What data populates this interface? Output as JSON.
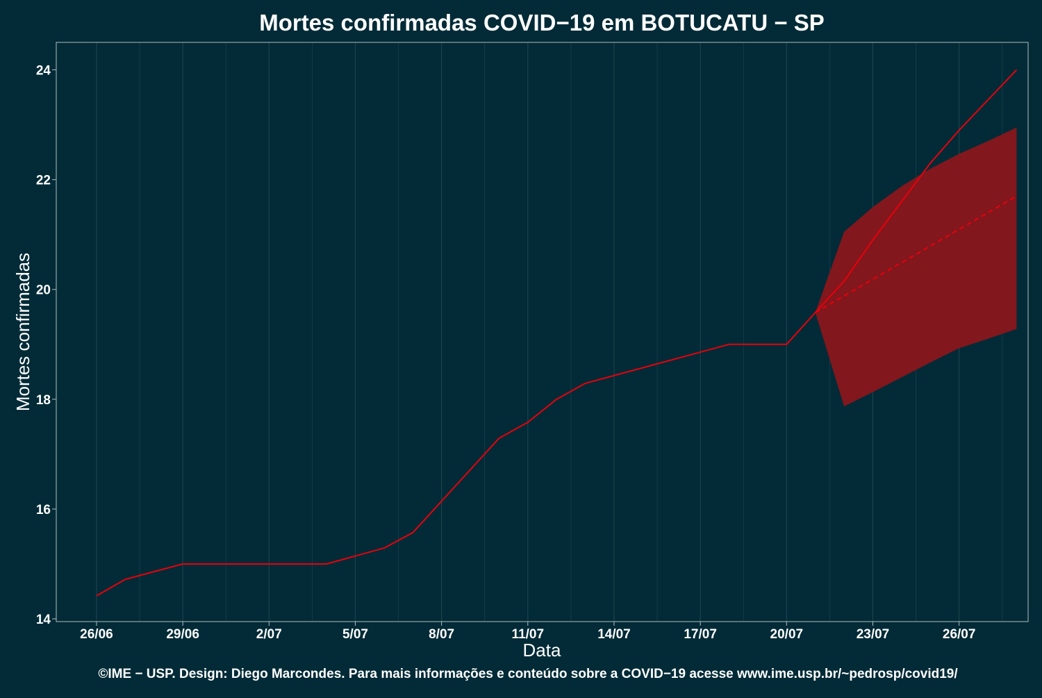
{
  "colors": {
    "background": "#022b37",
    "line": "#e8000b",
    "band": "#82171d",
    "grid": "#1c434e",
    "axis": "#b3bec2"
  },
  "chart_data": {
    "type": "line",
    "title": "Mortes confirmadas COVID−19 em BOTUCATU − SP",
    "xlabel": "Data",
    "ylabel": "Mortes confirmadas",
    "caption": "©IME − USP. Design: Diego Marcondes. Para mais informações e conteúdo sobre a COVID−19 acesse www.ime.usp.br/~pedrosp/covid19/",
    "x_axis": {
      "ticks": [
        "26/06",
        "29/06",
        "2/07",
        "5/07",
        "8/07",
        "11/07",
        "14/07",
        "17/07",
        "20/07",
        "23/07",
        "26/07"
      ],
      "tick_days": [
        0,
        3,
        6,
        9,
        12,
        15,
        18,
        21,
        24,
        27,
        30
      ],
      "range_days": [
        -1.4,
        32.4
      ]
    },
    "y_axis": {
      "ticks": [
        "14",
        "16",
        "18",
        "20",
        "22",
        "24"
      ],
      "tick_values": [
        14,
        16,
        18,
        20,
        22,
        24
      ],
      "range": [
        13.95,
        24.5
      ]
    },
    "grid": true,
    "legend": "none",
    "series": [
      {
        "style": "solid",
        "x": [
          "26/06",
          "27/06",
          "29/06",
          "4/07",
          "6/07",
          "7/07",
          "10/07",
          "11/07",
          "12/07",
          "13/07",
          "18/07",
          "20/07",
          "21/07",
          "22/07",
          "23/07",
          "24/07",
          "25/07",
          "26/07",
          "27/07",
          "28/07"
        ],
        "y": [
          14.42,
          14.72,
          15.0,
          15.0,
          15.29,
          15.57,
          17.29,
          17.58,
          18.0,
          18.29,
          19.0,
          19.0,
          19.58,
          20.15,
          20.9,
          21.6,
          22.3,
          22.9,
          23.45,
          24.0
        ]
      },
      {
        "style": "dashed",
        "x": [
          "21/07",
          "28/07"
        ],
        "y": [
          19.58,
          21.7
        ]
      }
    ],
    "band": {
      "x": [
        "21/07",
        "22/07",
        "23/07",
        "24/07",
        "25/07",
        "26/07",
        "27/07",
        "28/07"
      ],
      "upper": [
        19.58,
        21.05,
        21.5,
        21.88,
        22.2,
        22.47,
        22.7,
        22.95
      ],
      "lower": [
        19.58,
        17.87,
        18.13,
        18.4,
        18.67,
        18.93,
        19.1,
        19.28
      ]
    }
  }
}
